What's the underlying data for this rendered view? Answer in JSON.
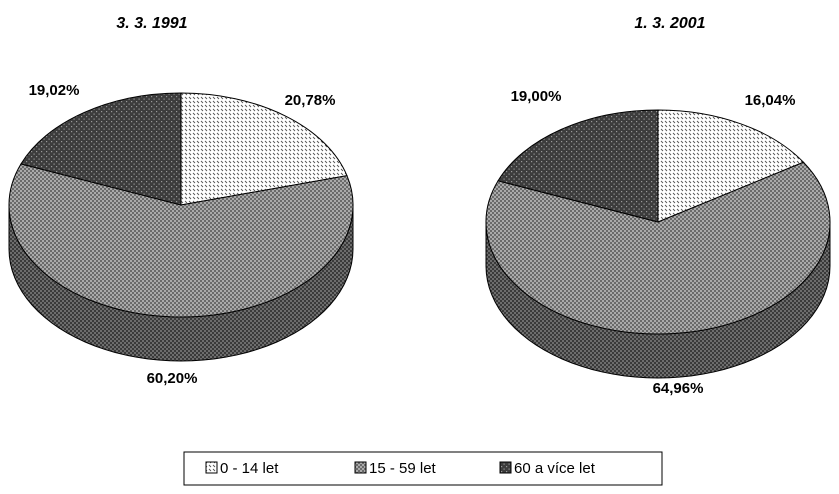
{
  "chart_data": [
    {
      "type": "pie",
      "title": "3. 3. 1991",
      "categories": [
        "0 - 14 let",
        "15 - 59 let",
        "60 a více let"
      ],
      "values": [
        20.78,
        60.2,
        19.02
      ],
      "data_labels": [
        "20,78%",
        "60,20%",
        "19,02%"
      ]
    },
    {
      "type": "pie",
      "title": "1. 3. 2001",
      "categories": [
        "0 - 14 let",
        "15 - 59 let",
        "60 a více let"
      ],
      "values": [
        16.04,
        64.96,
        19.0
      ],
      "data_labels": [
        "16,04%",
        "64,96%",
        "19,00%"
      ]
    }
  ],
  "legend": {
    "placement": "bottom",
    "items": [
      "0 - 14 let",
      "15 - 59 let",
      "60 a více let"
    ]
  }
}
